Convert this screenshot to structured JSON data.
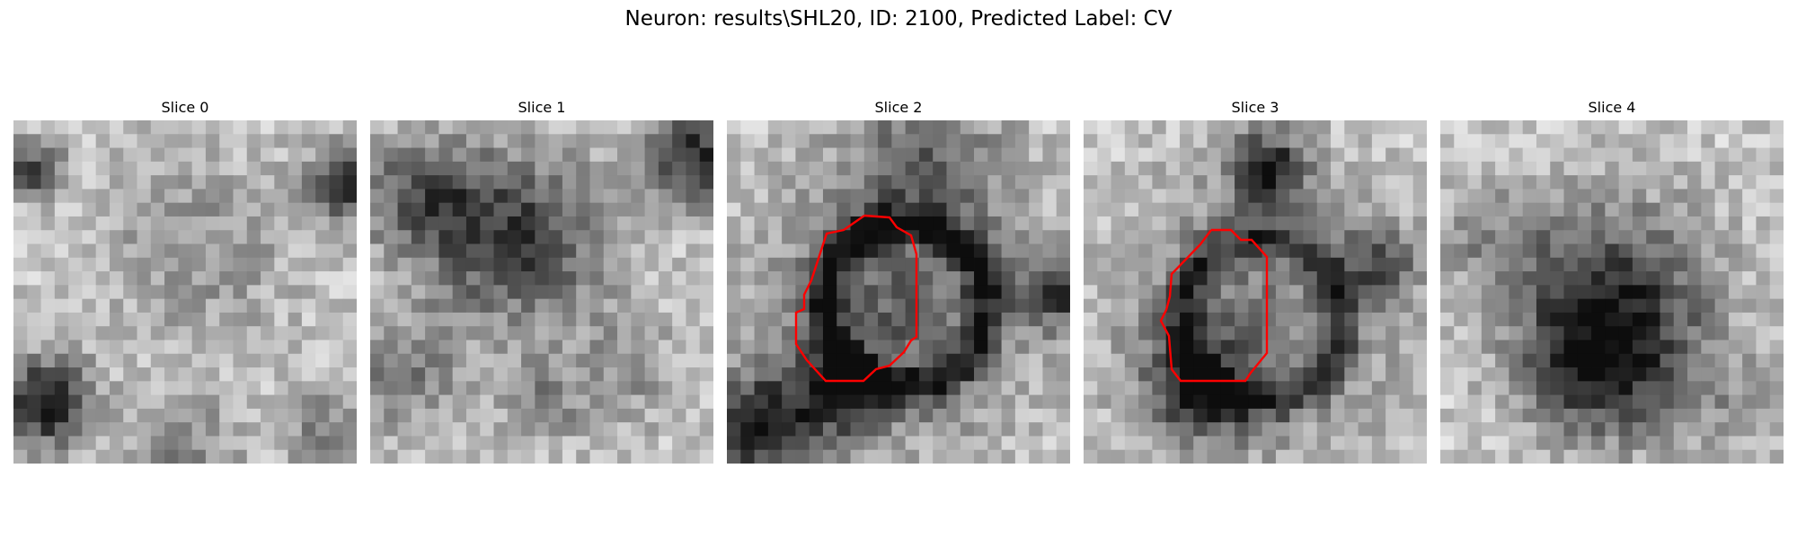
{
  "figure": {
    "title": "Neuron: results\\SHL20, ID: 2100, Predicted Label: CV"
  },
  "slices": [
    {
      "title": "Slice 0",
      "has_contour": false
    },
    {
      "title": "Slice 1",
      "has_contour": false
    },
    {
      "title": "Slice 2",
      "has_contour": true
    },
    {
      "title": "Slice 3",
      "has_contour": true
    },
    {
      "title": "Slice 4",
      "has_contour": false
    }
  ],
  "colors": {
    "contour": "#ff0000",
    "background": "#ffffff"
  }
}
